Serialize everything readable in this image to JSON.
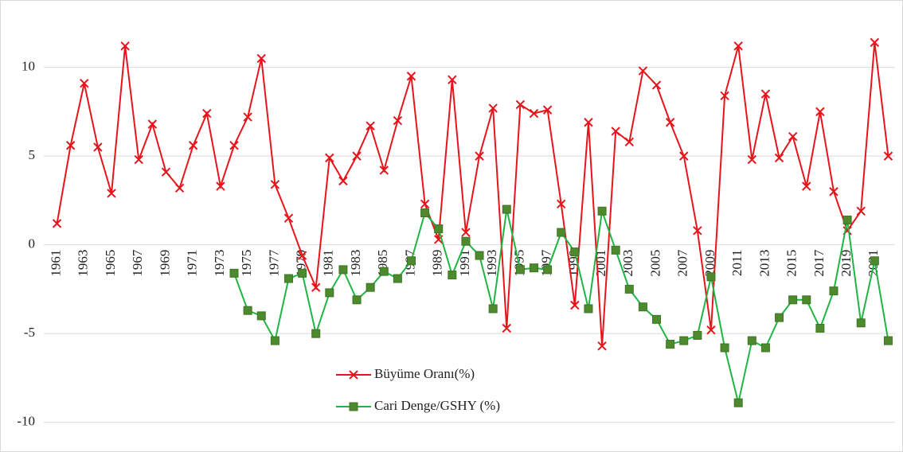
{
  "chart_data": {
    "type": "line",
    "categories": [
      "1961",
      null,
      "1963",
      null,
      "1965",
      null,
      "1967",
      null,
      "1969",
      null,
      "1971",
      null,
      "1973",
      null,
      "1975",
      null,
      "1977",
      null,
      "1979",
      null,
      "1981",
      null,
      "1983",
      null,
      "1985",
      null,
      "1987",
      null,
      "1989",
      null,
      "1991",
      null,
      "1993",
      null,
      "1995",
      null,
      "1997",
      null,
      "1999",
      null,
      "2001",
      null,
      "2003",
      null,
      "2005",
      null,
      "2007",
      null,
      "2009",
      null,
      "2011",
      null,
      "2013",
      null,
      "2015",
      null,
      "2017",
      null,
      "2019",
      null,
      "2021",
      null
    ],
    "series": [
      {
        "name": "Büyüme Oranı(%)",
        "color": "#e8141b",
        "values": [
          1.2,
          5.6,
          9.1,
          5.5,
          2.9,
          11.2,
          4.8,
          6.8,
          4.1,
          3.2,
          5.6,
          7.4,
          3.3,
          5.6,
          7.2,
          10.5,
          3.4,
          1.5,
          -0.6,
          -2.4,
          4.9,
          3.6,
          5.0,
          6.7,
          4.2,
          7.0,
          9.5,
          2.3,
          0.3,
          9.3,
          0.7,
          5.0,
          7.7,
          -4.7,
          7.9,
          7.4,
          7.6,
          2.3,
          -3.4,
          6.9,
          -5.7,
          6.4,
          5.8,
          9.8,
          9.0,
          6.9,
          5.0,
          0.8,
          -4.8,
          8.4,
          11.2,
          4.8,
          8.5,
          4.9,
          6.1,
          3.3,
          7.5,
          3.0,
          0.8,
          1.9,
          11.4,
          5.0
        ]
      },
      {
        "name": "Cari Denge/GSHY (%)",
        "color": "#1fb543",
        "values": [
          null,
          null,
          null,
          null,
          null,
          null,
          null,
          null,
          null,
          null,
          null,
          null,
          null,
          -1.6,
          -3.7,
          -4.0,
          -5.4,
          -1.9,
          -1.6,
          -5.0,
          -2.7,
          -1.4,
          -3.1,
          -2.4,
          -1.5,
          -1.9,
          -0.9,
          1.8,
          0.9,
          -1.7,
          0.2,
          -0.6,
          -3.6,
          2.0,
          -1.4,
          -1.3,
          -1.4,
          0.7,
          -0.4,
          -3.6,
          1.9,
          -0.3,
          -2.5,
          -3.5,
          -4.2,
          -5.6,
          -5.4,
          -5.1,
          -1.8,
          -5.8,
          -8.9,
          -5.4,
          -5.8,
          -4.1,
          -3.1,
          -3.1,
          -4.7,
          -2.6,
          1.4,
          -4.4,
          -0.9,
          -5.4
        ]
      }
    ],
    "ylim": [
      -11,
      12
    ],
    "yticks": [
      -10,
      -5,
      0,
      5,
      10
    ],
    "grid": true
  }
}
